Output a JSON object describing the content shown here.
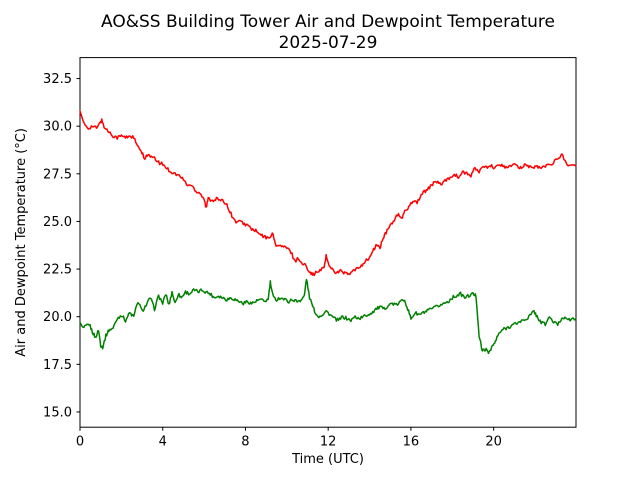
{
  "chart_data": {
    "type": "line",
    "title": "AO&SS Building Tower Air and Dewpoint Temperature",
    "subtitle": "2025-07-29",
    "xlabel": "Time (UTC)",
    "ylabel": "Air and Dewpoint Temperature (°C)",
    "xlim": [
      0,
      23.983
    ],
    "ylim": [
      14.2,
      33.6
    ],
    "xticks": [
      0,
      4,
      8,
      12,
      16,
      20
    ],
    "yticks": [
      15.0,
      17.5,
      20.0,
      22.5,
      25.0,
      27.5,
      30.0,
      32.5
    ],
    "grid": false,
    "legend_position": "none",
    "series": [
      {
        "name": "air-temperature",
        "color": "#ff0000",
        "points": [
          [
            0,
            30.8
          ],
          [
            0.2,
            30.1
          ],
          [
            0.4,
            29.9
          ],
          [
            0.6,
            30.0
          ],
          [
            0.8,
            29.9
          ],
          [
            1.0,
            30.2
          ],
          [
            1.05,
            30.3
          ],
          [
            1.2,
            29.9
          ],
          [
            1.4,
            29.7
          ],
          [
            1.6,
            29.5
          ],
          [
            1.8,
            29.4
          ],
          [
            2.0,
            29.5
          ],
          [
            2.2,
            29.4
          ],
          [
            2.4,
            29.5
          ],
          [
            2.6,
            29.4
          ],
          [
            2.8,
            28.9
          ],
          [
            3.0,
            28.6
          ],
          [
            3.1,
            28.3
          ],
          [
            3.25,
            28.5
          ],
          [
            3.4,
            28.4
          ],
          [
            3.6,
            28.3
          ],
          [
            3.8,
            28.1
          ],
          [
            4.0,
            28.0
          ],
          [
            4.2,
            27.8
          ],
          [
            4.4,
            27.6
          ],
          [
            4.6,
            27.5
          ],
          [
            4.8,
            27.4
          ],
          [
            5.0,
            27.2
          ],
          [
            5.2,
            26.9
          ],
          [
            5.4,
            26.9
          ],
          [
            5.6,
            26.6
          ],
          [
            5.8,
            26.5
          ],
          [
            6.0,
            26.2
          ],
          [
            6.1,
            25.7
          ],
          [
            6.2,
            26.2
          ],
          [
            6.4,
            26.1
          ],
          [
            6.6,
            26.2
          ],
          [
            6.8,
            26.1
          ],
          [
            7.0,
            26.0
          ],
          [
            7.1,
            25.9
          ],
          [
            7.3,
            25.4
          ],
          [
            7.5,
            25.0
          ],
          [
            7.7,
            25.0
          ],
          [
            7.9,
            24.9
          ],
          [
            8.1,
            24.8
          ],
          [
            8.3,
            24.6
          ],
          [
            8.5,
            24.5
          ],
          [
            8.7,
            24.3
          ],
          [
            8.9,
            24.2
          ],
          [
            9.1,
            24.1
          ],
          [
            9.3,
            24.4
          ],
          [
            9.45,
            23.8
          ],
          [
            9.6,
            23.7
          ],
          [
            9.8,
            23.7
          ],
          [
            10.0,
            23.6
          ],
          [
            10.2,
            23.4
          ],
          [
            10.4,
            22.9
          ],
          [
            10.55,
            23.1
          ],
          [
            10.7,
            22.8
          ],
          [
            10.9,
            22.7
          ],
          [
            11.1,
            22.4
          ],
          [
            11.25,
            22.2
          ],
          [
            11.4,
            22.3
          ],
          [
            11.6,
            22.4
          ],
          [
            11.8,
            22.6
          ],
          [
            11.9,
            23.2
          ],
          [
            12.0,
            22.8
          ],
          [
            12.2,
            22.5
          ],
          [
            12.4,
            22.3
          ],
          [
            12.6,
            22.4
          ],
          [
            12.8,
            22.3
          ],
          [
            13.0,
            22.2
          ],
          [
            13.2,
            22.4
          ],
          [
            13.4,
            22.5
          ],
          [
            13.6,
            22.7
          ],
          [
            13.8,
            22.9
          ],
          [
            14.0,
            23.1
          ],
          [
            14.2,
            23.5
          ],
          [
            14.35,
            23.8
          ],
          [
            14.5,
            23.6
          ],
          [
            14.65,
            24.1
          ],
          [
            14.8,
            24.4
          ],
          [
            15.0,
            24.8
          ],
          [
            15.2,
            25.1
          ],
          [
            15.4,
            25.4
          ],
          [
            15.55,
            25.1
          ],
          [
            15.7,
            25.5
          ],
          [
            15.9,
            25.8
          ],
          [
            16.1,
            26.1
          ],
          [
            16.3,
            26.0
          ],
          [
            16.5,
            26.4
          ],
          [
            16.7,
            26.6
          ],
          [
            16.9,
            26.8
          ],
          [
            17.1,
            27.0
          ],
          [
            17.3,
            27.1
          ],
          [
            17.5,
            26.9
          ],
          [
            17.7,
            27.2
          ],
          [
            17.9,
            27.3
          ],
          [
            18.1,
            27.5
          ],
          [
            18.3,
            27.3
          ],
          [
            18.5,
            27.6
          ],
          [
            18.7,
            27.5
          ],
          [
            18.9,
            27.4
          ],
          [
            19.1,
            27.8
          ],
          [
            19.3,
            27.6
          ],
          [
            19.5,
            27.9
          ],
          [
            19.7,
            27.8
          ],
          [
            19.9,
            27.9
          ],
          [
            20.1,
            27.8
          ],
          [
            20.3,
            28.0
          ],
          [
            20.5,
            27.9
          ],
          [
            20.7,
            27.8
          ],
          [
            20.9,
            28.0
          ],
          [
            21.1,
            27.9
          ],
          [
            21.3,
            27.8
          ],
          [
            21.5,
            28.0
          ],
          [
            21.7,
            27.9
          ],
          [
            21.9,
            27.8
          ],
          [
            22.1,
            27.9
          ],
          [
            22.3,
            27.8
          ],
          [
            22.5,
            27.9
          ],
          [
            22.7,
            28.0
          ],
          [
            22.9,
            28.1
          ],
          [
            23.1,
            28.3
          ],
          [
            23.3,
            28.5
          ],
          [
            23.5,
            28.1
          ],
          [
            23.7,
            27.9
          ],
          [
            23.98,
            27.9
          ]
        ]
      },
      {
        "name": "dewpoint-temperature",
        "color": "#008000",
        "points": [
          [
            0,
            19.7
          ],
          [
            0.15,
            19.4
          ],
          [
            0.3,
            19.5
          ],
          [
            0.45,
            19.6
          ],
          [
            0.6,
            19.2
          ],
          [
            0.75,
            18.9
          ],
          [
            0.9,
            19.3
          ],
          [
            1.0,
            18.5
          ],
          [
            1.1,
            18.4
          ],
          [
            1.25,
            19.0
          ],
          [
            1.4,
            19.3
          ],
          [
            1.6,
            19.4
          ],
          [
            1.8,
            19.9
          ],
          [
            2.0,
            20.1
          ],
          [
            2.2,
            19.8
          ],
          [
            2.4,
            20.2
          ],
          [
            2.6,
            20.0
          ],
          [
            2.8,
            20.8
          ],
          [
            3.0,
            20.3
          ],
          [
            3.2,
            20.6
          ],
          [
            3.4,
            21.0
          ],
          [
            3.6,
            20.4
          ],
          [
            3.8,
            21.1
          ],
          [
            4.0,
            20.7
          ],
          [
            4.15,
            21.2
          ],
          [
            4.3,
            20.6
          ],
          [
            4.45,
            21.3
          ],
          [
            4.6,
            20.7
          ],
          [
            4.75,
            21.2
          ],
          [
            4.9,
            21.0
          ],
          [
            5.1,
            21.3
          ],
          [
            5.3,
            21.2
          ],
          [
            5.5,
            21.4
          ],
          [
            5.7,
            21.3
          ],
          [
            5.9,
            21.4
          ],
          [
            6.1,
            21.3
          ],
          [
            6.3,
            21.2
          ],
          [
            6.5,
            21.0
          ],
          [
            6.7,
            21.1
          ],
          [
            6.9,
            21.0
          ],
          [
            7.1,
            20.9
          ],
          [
            7.3,
            21.0
          ],
          [
            7.5,
            20.9
          ],
          [
            7.7,
            20.8
          ],
          [
            7.9,
            20.7
          ],
          [
            8.1,
            20.8
          ],
          [
            8.3,
            20.7
          ],
          [
            8.5,
            20.8
          ],
          [
            8.7,
            20.9
          ],
          [
            8.9,
            20.8
          ],
          [
            9.1,
            20.9
          ],
          [
            9.2,
            21.8
          ],
          [
            9.35,
            21.0
          ],
          [
            9.5,
            20.9
          ],
          [
            9.7,
            21.0
          ],
          [
            9.9,
            20.9
          ],
          [
            10.1,
            20.8
          ],
          [
            10.3,
            20.9
          ],
          [
            10.5,
            20.8
          ],
          [
            10.7,
            20.9
          ],
          [
            10.85,
            21.1
          ],
          [
            10.95,
            22.0
          ],
          [
            11.1,
            21.0
          ],
          [
            11.3,
            20.4
          ],
          [
            11.5,
            20.0
          ],
          [
            11.7,
            20.1
          ],
          [
            11.9,
            20.3
          ],
          [
            12.1,
            20.1
          ],
          [
            12.3,
            19.9
          ],
          [
            12.5,
            19.8
          ],
          [
            12.7,
            20.0
          ],
          [
            12.9,
            19.9
          ],
          [
            13.1,
            19.8
          ],
          [
            13.3,
            20.0
          ],
          [
            13.5,
            19.9
          ],
          [
            13.7,
            20.0
          ],
          [
            13.9,
            20.1
          ],
          [
            14.1,
            20.2
          ],
          [
            14.3,
            20.4
          ],
          [
            14.5,
            20.5
          ],
          [
            14.7,
            20.4
          ],
          [
            14.9,
            20.6
          ],
          [
            15.1,
            20.7
          ],
          [
            15.3,
            20.6
          ],
          [
            15.5,
            20.8
          ],
          [
            15.7,
            20.9
          ],
          [
            15.85,
            20.4
          ],
          [
            16.0,
            19.9
          ],
          [
            16.2,
            20.2
          ],
          [
            16.4,
            20.1
          ],
          [
            16.6,
            20.2
          ],
          [
            16.8,
            20.3
          ],
          [
            17.0,
            20.4
          ],
          [
            17.2,
            20.5
          ],
          [
            17.4,
            20.6
          ],
          [
            17.6,
            20.7
          ],
          [
            17.8,
            20.8
          ],
          [
            18.0,
            21.0
          ],
          [
            18.2,
            21.1
          ],
          [
            18.4,
            21.2
          ],
          [
            18.6,
            21.0
          ],
          [
            18.8,
            21.1
          ],
          [
            19.0,
            21.2
          ],
          [
            19.15,
            21.1
          ],
          [
            19.3,
            19.0
          ],
          [
            19.45,
            18.2
          ],
          [
            19.6,
            18.3
          ],
          [
            19.75,
            18.1
          ],
          [
            19.9,
            18.4
          ],
          [
            20.05,
            18.6
          ],
          [
            20.2,
            19.0
          ],
          [
            20.4,
            19.3
          ],
          [
            20.6,
            19.4
          ],
          [
            20.8,
            19.5
          ],
          [
            21.0,
            19.6
          ],
          [
            21.2,
            19.7
          ],
          [
            21.4,
            19.8
          ],
          [
            21.6,
            19.9
          ],
          [
            21.8,
            20.1
          ],
          [
            21.95,
            20.3
          ],
          [
            22.1,
            20.0
          ],
          [
            22.3,
            19.7
          ],
          [
            22.5,
            19.6
          ],
          [
            22.7,
            20.0
          ],
          [
            22.9,
            19.7
          ],
          [
            23.1,
            19.6
          ],
          [
            23.3,
            19.9
          ],
          [
            23.5,
            20.0
          ],
          [
            23.7,
            19.8
          ],
          [
            23.98,
            19.9
          ]
        ]
      }
    ]
  }
}
